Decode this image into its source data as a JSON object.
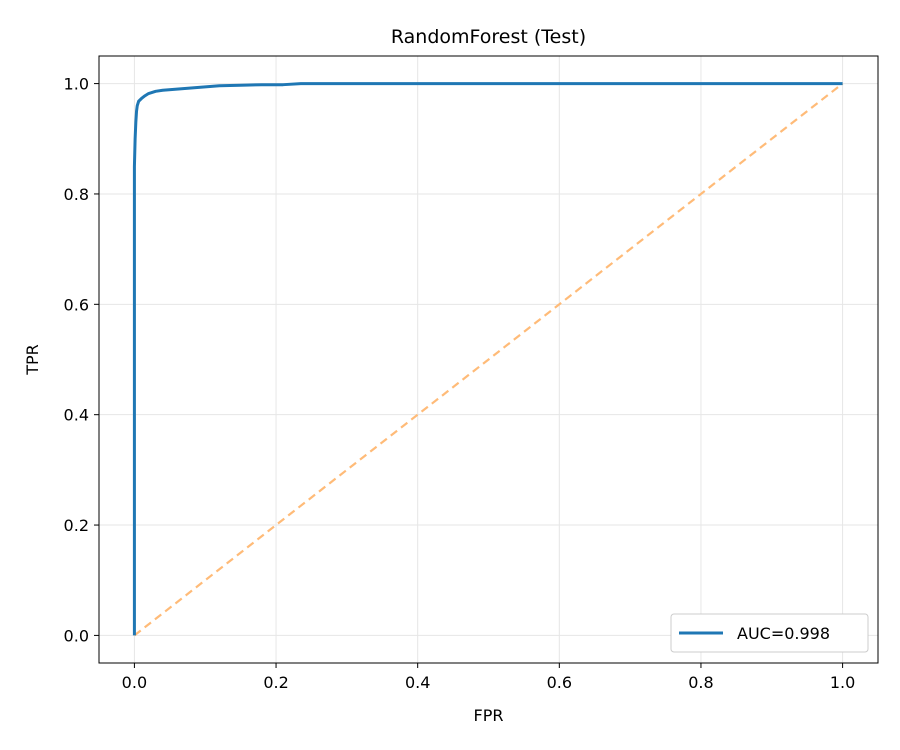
{
  "chart_data": {
    "type": "line",
    "title": "RandomForest (Test)",
    "xlabel": "FPR",
    "ylabel": "TPR",
    "xlim": [
      -0.05,
      1.05
    ],
    "ylim": [
      -0.05,
      1.05
    ],
    "xticks": [
      0.0,
      0.2,
      0.4,
      0.6,
      0.8,
      1.0
    ],
    "yticks": [
      0.0,
      0.2,
      0.4,
      0.6,
      0.8,
      1.0
    ],
    "xtick_labels": [
      "0.0",
      "0.2",
      "0.4",
      "0.6",
      "0.8",
      "1.0"
    ],
    "ytick_labels": [
      "0.0",
      "0.2",
      "0.4",
      "0.6",
      "0.8",
      "1.0"
    ],
    "grid": true,
    "legend_position": "lower-right",
    "series": [
      {
        "name": "AUC=0.998",
        "color": "#1f77b4",
        "style": "solid",
        "x": [
          0.0,
          0.0,
          0.001,
          0.002,
          0.003,
          0.004,
          0.006,
          0.01,
          0.015,
          0.02,
          0.03,
          0.04,
          0.06,
          0.08,
          0.1,
          0.12,
          0.15,
          0.18,
          0.21,
          0.235,
          0.3,
          0.5,
          0.7,
          1.0
        ],
        "y": [
          0.0,
          0.85,
          0.9,
          0.93,
          0.95,
          0.96,
          0.968,
          0.973,
          0.978,
          0.982,
          0.986,
          0.988,
          0.99,
          0.992,
          0.994,
          0.996,
          0.997,
          0.998,
          0.998,
          1.0,
          1.0,
          1.0,
          1.0,
          1.0
        ]
      },
      {
        "name": "",
        "color": "#ffbb78",
        "style": "dashed",
        "x": [
          0.0,
          1.0
        ],
        "y": [
          0.0,
          1.0
        ]
      }
    ]
  }
}
